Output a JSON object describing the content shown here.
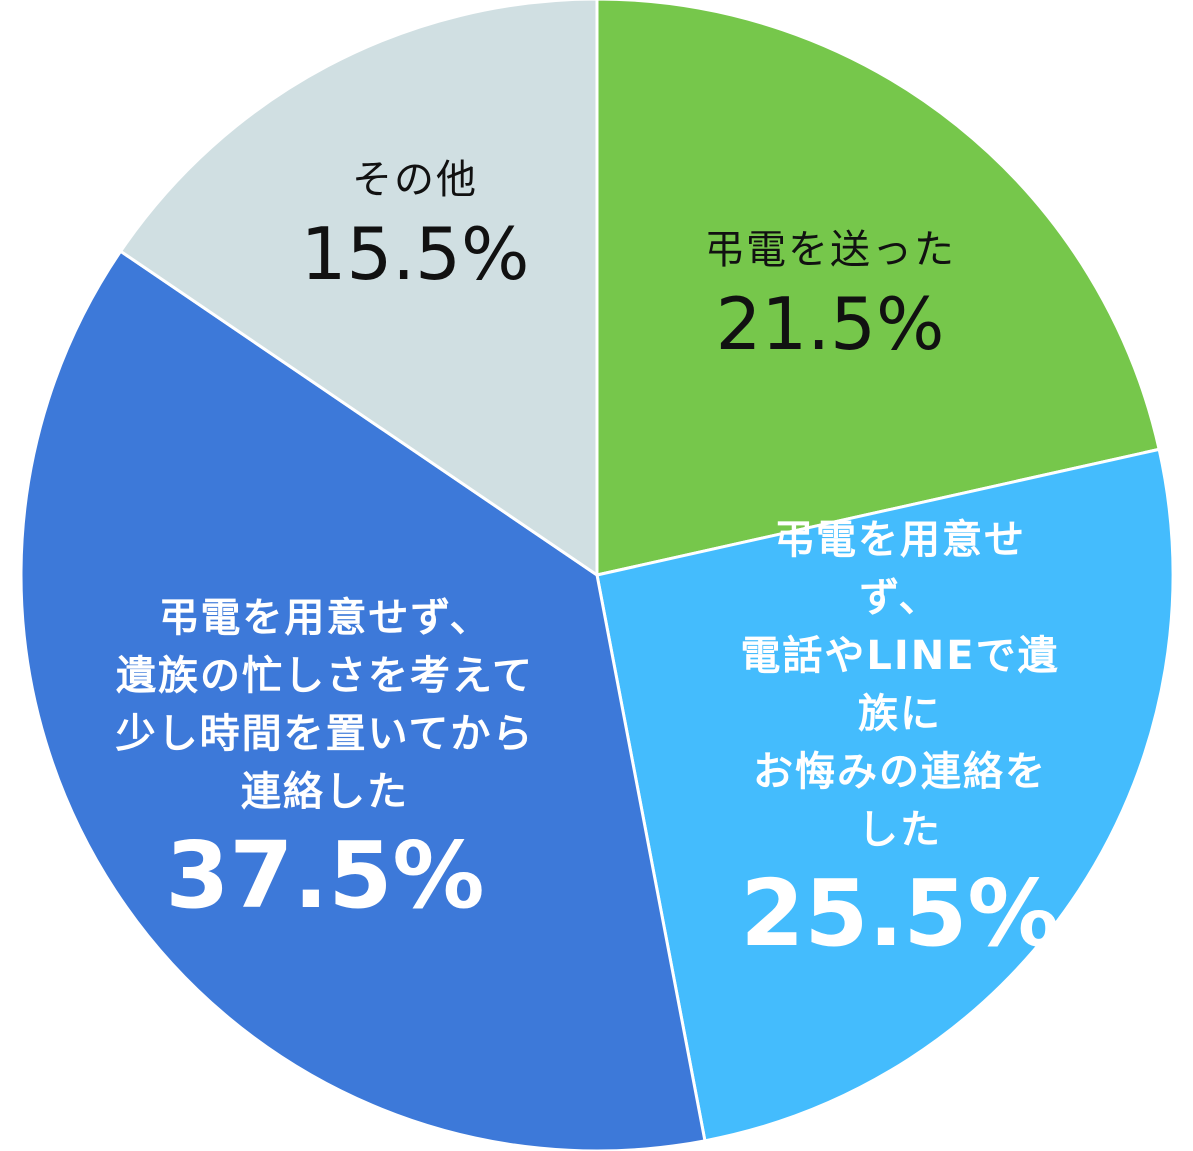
{
  "chart_data": {
    "type": "pie",
    "categories": [
      "弔電を送った",
      "弔電を用意せず、\n電話やLINEで遺族に\nお悔みの連絡をした",
      "弔電を用意せず、\n遺族の忙しさを考えて\n少し時間を置いてから\n連絡した",
      "その他"
    ],
    "values": [
      21.5,
      25.5,
      37.5,
      15.5
    ],
    "value_labels": [
      "21.5%",
      "25.5%",
      "37.5%",
      "15.5%"
    ],
    "colors": [
      "#76c74b",
      "#44bcfd",
      "#3d79d9",
      "#d0dfe2"
    ]
  }
}
